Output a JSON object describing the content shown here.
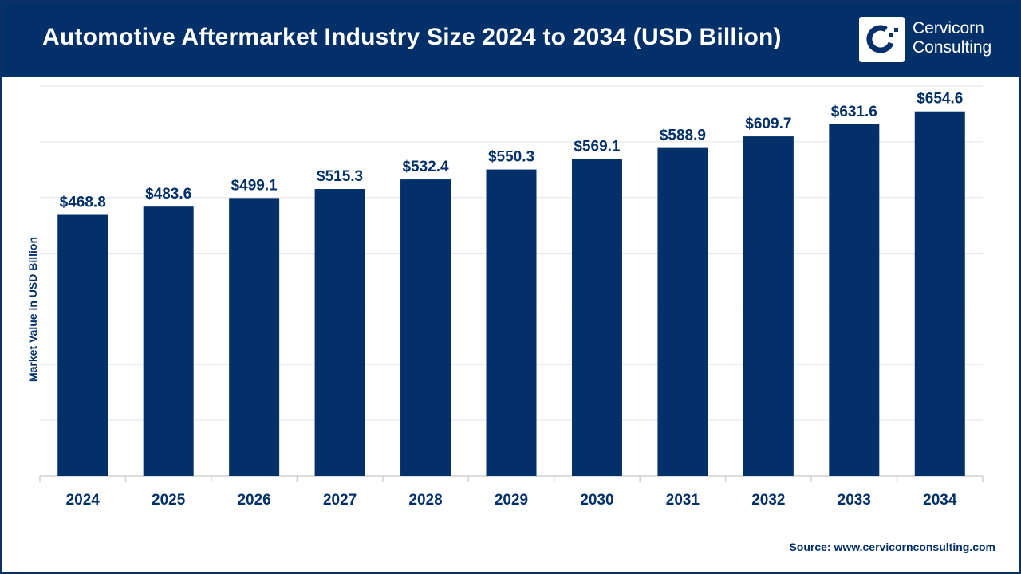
{
  "header": {
    "title": "Automotive Aftermarket Industry Size 2024 to 2034 (USD Billion)",
    "logo_text": [
      "Cervicorn",
      "Consulting"
    ]
  },
  "source": "Source: www.cervicornconsulting.com",
  "colors": {
    "bar": "#033069",
    "header": "#033069",
    "grid": "#e3e3e3"
  },
  "chart_data": {
    "type": "bar",
    "title": "Automotive Aftermarket Industry Size 2024 to 2034 (USD Billion)",
    "xlabel": "",
    "ylabel": "Market Value in USD Billion",
    "categories": [
      "2024",
      "2025",
      "2026",
      "2027",
      "2028",
      "2029",
      "2030",
      "2031",
      "2032",
      "2033",
      "2034"
    ],
    "values": [
      468.8,
      483.6,
      499.1,
      515.3,
      532.4,
      550.3,
      569.1,
      588.9,
      609.7,
      631.6,
      654.6
    ],
    "data_labels": [
      "$468.8",
      "$483.6",
      "$499.1",
      "$515.3",
      "$532.4",
      "$550.3",
      "$569.1",
      "$588.9",
      "$609.7",
      "$631.6",
      "$654.6"
    ],
    "ylim": [
      0,
      700
    ],
    "grid": true,
    "legend": "none"
  }
}
